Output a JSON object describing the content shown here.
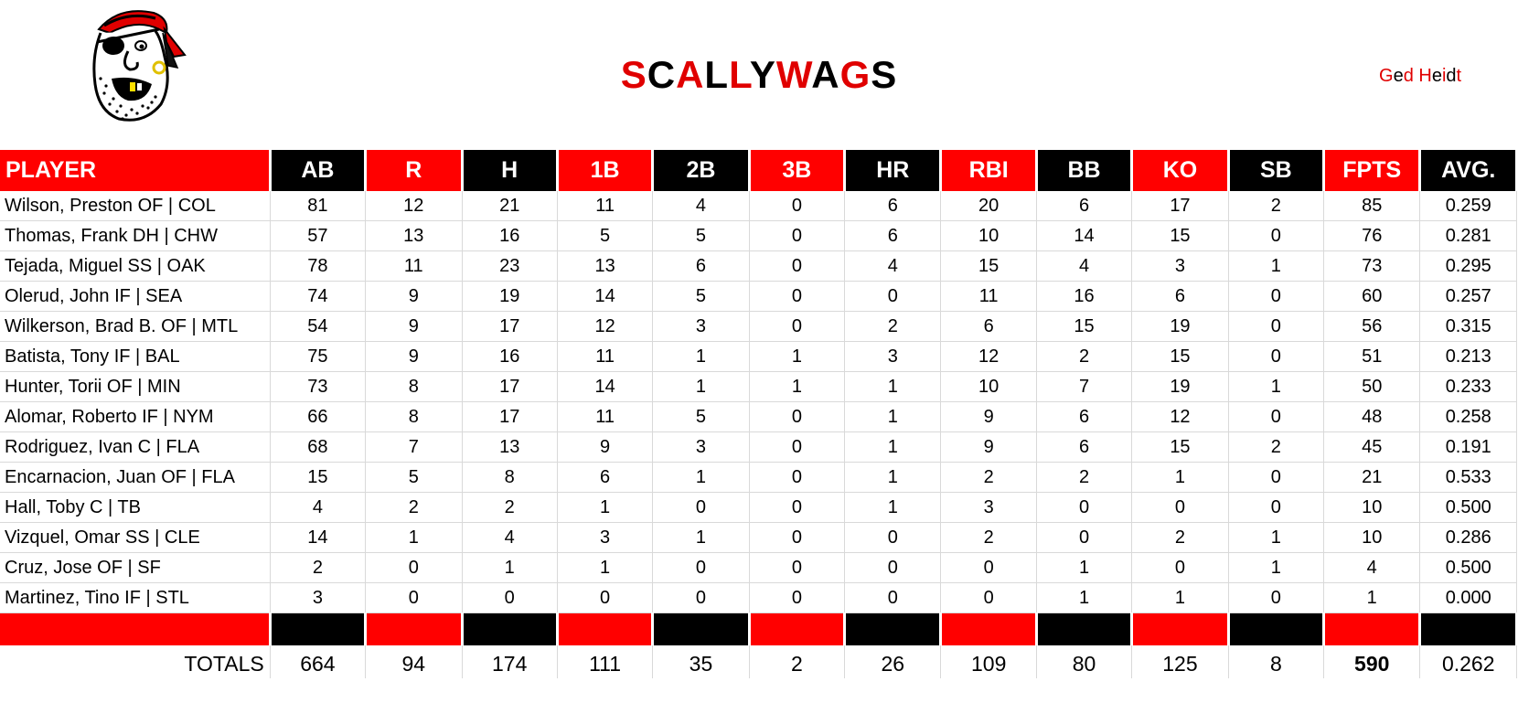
{
  "team": {
    "title_letters": [
      {
        "ch": "S",
        "color": "#e00000"
      },
      {
        "ch": "C",
        "color": "#000000"
      },
      {
        "ch": "A",
        "color": "#e00000"
      },
      {
        "ch": "L",
        "color": "#000000"
      },
      {
        "ch": "L",
        "color": "#e00000"
      },
      {
        "ch": "Y",
        "color": "#000000"
      },
      {
        "ch": "W",
        "color": "#e00000"
      },
      {
        "ch": "A",
        "color": "#000000"
      },
      {
        "ch": "G",
        "color": "#e00000"
      },
      {
        "ch": "S",
        "color": "#000000"
      }
    ],
    "owner_letters": [
      {
        "ch": "G",
        "color": "#e00000"
      },
      {
        "ch": "e",
        "color": "#000000"
      },
      {
        "ch": "d",
        "color": "#e00000"
      },
      {
        "ch": " ",
        "color": "#000000"
      },
      {
        "ch": "H",
        "color": "#e00000"
      },
      {
        "ch": "e",
        "color": "#000000"
      },
      {
        "ch": "i",
        "color": "#e00000"
      },
      {
        "ch": "d",
        "color": "#000000"
      },
      {
        "ch": "t",
        "color": "#e00000"
      }
    ],
    "logo_icon": "pirate-mascot-icon"
  },
  "colors": {
    "red": "#ff0000",
    "black": "#000000"
  },
  "columns": [
    "PLAYER",
    "AB",
    "R",
    "H",
    "1B",
    "2B",
    "3B",
    "HR",
    "RBI",
    "BB",
    "KO",
    "SB",
    "FPTS",
    "AVG."
  ],
  "rows": [
    [
      "Wilson, Preston OF | COL",
      "81",
      "12",
      "21",
      "11",
      "4",
      "0",
      "6",
      "20",
      "6",
      "17",
      "2",
      "85",
      "0.259"
    ],
    [
      "Thomas, Frank DH | CHW",
      "57",
      "13",
      "16",
      "5",
      "5",
      "0",
      "6",
      "10",
      "14",
      "15",
      "0",
      "76",
      "0.281"
    ],
    [
      "Tejada, Miguel SS | OAK",
      "78",
      "11",
      "23",
      "13",
      "6",
      "0",
      "4",
      "15",
      "4",
      "3",
      "1",
      "73",
      "0.295"
    ],
    [
      "Olerud, John IF | SEA",
      "74",
      "9",
      "19",
      "14",
      "5",
      "0",
      "0",
      "11",
      "16",
      "6",
      "0",
      "60",
      "0.257"
    ],
    [
      "Wilkerson, Brad B. OF | MTL",
      "54",
      "9",
      "17",
      "12",
      "3",
      "0",
      "2",
      "6",
      "15",
      "19",
      "0",
      "56",
      "0.315"
    ],
    [
      "Batista, Tony IF | BAL",
      "75",
      "9",
      "16",
      "11",
      "1",
      "1",
      "3",
      "12",
      "2",
      "15",
      "0",
      "51",
      "0.213"
    ],
    [
      "Hunter, Torii OF | MIN",
      "73",
      "8",
      "17",
      "14",
      "1",
      "1",
      "1",
      "10",
      "7",
      "19",
      "1",
      "50",
      "0.233"
    ],
    [
      "Alomar, Roberto IF | NYM",
      "66",
      "8",
      "17",
      "11",
      "5",
      "0",
      "1",
      "9",
      "6",
      "12",
      "0",
      "48",
      "0.258"
    ],
    [
      "Rodriguez, Ivan C | FLA",
      "68",
      "7",
      "13",
      "9",
      "3",
      "0",
      "1",
      "9",
      "6",
      "15",
      "2",
      "45",
      "0.191"
    ],
    [
      "Encarnacion, Juan OF | FLA",
      "15",
      "5",
      "8",
      "6",
      "1",
      "0",
      "1",
      "2",
      "2",
      "1",
      "0",
      "21",
      "0.533"
    ],
    [
      "Hall, Toby C | TB",
      "4",
      "2",
      "2",
      "1",
      "0",
      "0",
      "1",
      "3",
      "0",
      "0",
      "0",
      "10",
      "0.500"
    ],
    [
      "Vizquel, Omar SS | CLE",
      "14",
      "1",
      "4",
      "3",
      "1",
      "0",
      "0",
      "2",
      "0",
      "2",
      "1",
      "10",
      "0.286"
    ],
    [
      "Cruz, Jose OF | SF",
      "2",
      "0",
      "1",
      "1",
      "0",
      "0",
      "0",
      "0",
      "1",
      "0",
      "1",
      "4",
      "0.500"
    ],
    [
      "Martinez, Tino IF | STL",
      "3",
      "0",
      "0",
      "0",
      "0",
      "0",
      "0",
      "0",
      "1",
      "1",
      "0",
      "1",
      "0.000"
    ]
  ],
  "totals": [
    "TOTALS",
    "664",
    "94",
    "174",
    "111",
    "35",
    "2",
    "26",
    "109",
    "80",
    "125",
    "8",
    "590",
    "0.262"
  ]
}
